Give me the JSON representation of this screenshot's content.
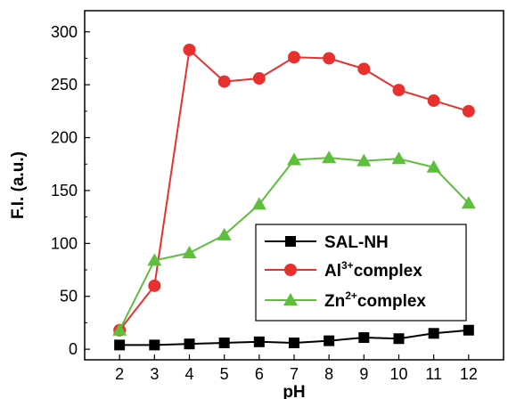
{
  "chart_data": {
    "type": "line",
    "xlabel": "pH",
    "ylabel": "F.I. (a.u.)",
    "x": [
      2,
      3,
      4,
      5,
      6,
      7,
      8,
      9,
      10,
      11,
      12
    ],
    "xlim": [
      1,
      13
    ],
    "ylim": [
      -10,
      320
    ],
    "x_ticks": [
      2,
      3,
      4,
      5,
      6,
      7,
      8,
      9,
      10,
      11,
      12
    ],
    "y_ticks": [
      0,
      50,
      100,
      150,
      200,
      250,
      300
    ],
    "legend_position": "center-right",
    "series": [
      {
        "name": "SAL-NH",
        "color": "#000000",
        "marker": "square",
        "values": [
          4,
          4,
          5,
          6,
          7,
          6,
          8,
          11,
          10,
          15,
          18
        ]
      },
      {
        "name": "Al3+complex",
        "legend": {
          "base": "Al",
          "sup": "3+",
          "rest": "complex"
        },
        "color": "#e8312f",
        "marker": "circle",
        "values": [
          18,
          60,
          283,
          253,
          256,
          276,
          275,
          265,
          245,
          235,
          225
        ]
      },
      {
        "name": "Zn2+complex",
        "legend": {
          "base": "Zn",
          "sup": "2+",
          "rest": "complex"
        },
        "color": "#5dbf3c",
        "marker": "triangle",
        "values": [
          18,
          84,
          91,
          108,
          137,
          179,
          181,
          178,
          180,
          172,
          138
        ]
      }
    ]
  }
}
